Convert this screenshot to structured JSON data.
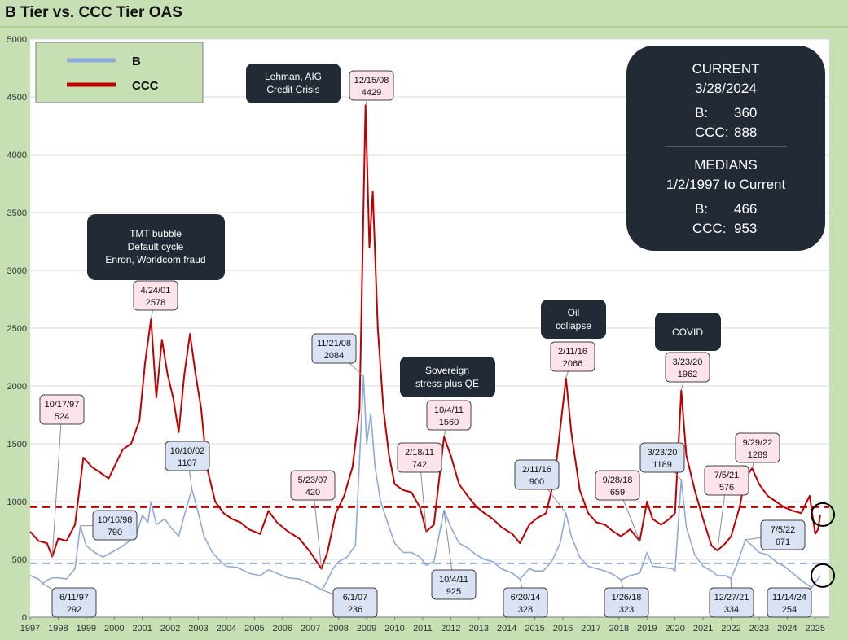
{
  "title": "B Tier vs. CCC Tier OAS",
  "chart_data": {
    "type": "line",
    "title": "B Tier vs. CCC Tier OAS",
    "xlim": [
      1997.0,
      2025.5
    ],
    "ylim": [
      0,
      5000
    ],
    "x_ticks": [
      "1997",
      "1998",
      "1999",
      "2000",
      "2001",
      "2002",
      "2003",
      "2004",
      "2005",
      "2006",
      "2007",
      "2008",
      "2009",
      "2010",
      "2011",
      "2012",
      "2013",
      "2014",
      "2015",
      "2016",
      "2017",
      "2018",
      "2019",
      "2020",
      "2021",
      "2022",
      "2023",
      "2024",
      "2025"
    ],
    "y_ticks": [
      0,
      500,
      1000,
      1500,
      2000,
      2500,
      3000,
      3500,
      4000,
      4500,
      5000
    ],
    "series": [
      {
        "name": "B",
        "color": "#8eaadb",
        "median": 466,
        "points": [
          [
            1997.0,
            360
          ],
          [
            1997.3,
            330
          ],
          [
            1997.44,
            292
          ],
          [
            1997.6,
            320
          ],
          [
            1997.8,
            340
          ],
          [
            1998.0,
            340
          ],
          [
            1998.3,
            330
          ],
          [
            1998.6,
            420
          ],
          [
            1998.79,
            790
          ],
          [
            1999.0,
            620
          ],
          [
            1999.3,
            560
          ],
          [
            1999.6,
            520
          ],
          [
            1999.9,
            560
          ],
          [
            2000.2,
            600
          ],
          [
            2000.5,
            650
          ],
          [
            2000.8,
            720
          ],
          [
            2001.0,
            880
          ],
          [
            2001.2,
            820
          ],
          [
            2001.31,
            1000
          ],
          [
            2001.5,
            800
          ],
          [
            2001.8,
            850
          ],
          [
            2002.0,
            780
          ],
          [
            2002.3,
            700
          ],
          [
            2002.5,
            880
          ],
          [
            2002.77,
            1107
          ],
          [
            2003.0,
            900
          ],
          [
            2003.2,
            700
          ],
          [
            2003.5,
            560
          ],
          [
            2003.8,
            480
          ],
          [
            2004.0,
            440
          ],
          [
            2004.4,
            430
          ],
          [
            2004.8,
            380
          ],
          [
            2005.2,
            360
          ],
          [
            2005.5,
            410
          ],
          [
            2005.8,
            380
          ],
          [
            2006.2,
            340
          ],
          [
            2006.6,
            330
          ],
          [
            2007.0,
            290
          ],
          [
            2007.41,
            236
          ],
          [
            2007.6,
            320
          ],
          [
            2007.8,
            420
          ],
          [
            2008.0,
            480
          ],
          [
            2008.3,
            520
          ],
          [
            2008.6,
            620
          ],
          [
            2008.89,
            2084
          ],
          [
            2009.0,
            1500
          ],
          [
            2009.15,
            1760
          ],
          [
            2009.3,
            1300
          ],
          [
            2009.5,
            1000
          ],
          [
            2009.8,
            780
          ],
          [
            2010.0,
            640
          ],
          [
            2010.3,
            560
          ],
          [
            2010.6,
            560
          ],
          [
            2010.9,
            520
          ],
          [
            2011.13,
            450
          ],
          [
            2011.4,
            480
          ],
          [
            2011.76,
            925
          ],
          [
            2012.0,
            780
          ],
          [
            2012.3,
            640
          ],
          [
            2012.6,
            600
          ],
          [
            2012.9,
            540
          ],
          [
            2013.2,
            500
          ],
          [
            2013.5,
            480
          ],
          [
            2013.8,
            420
          ],
          [
            2014.2,
            380
          ],
          [
            2014.47,
            328
          ],
          [
            2014.8,
            420
          ],
          [
            2015.0,
            400
          ],
          [
            2015.3,
            400
          ],
          [
            2015.6,
            480
          ],
          [
            2015.9,
            640
          ],
          [
            2016.11,
            900
          ],
          [
            2016.3,
            700
          ],
          [
            2016.6,
            520
          ],
          [
            2016.9,
            440
          ],
          [
            2017.2,
            420
          ],
          [
            2017.5,
            400
          ],
          [
            2017.8,
            370
          ],
          [
            2018.07,
            323
          ],
          [
            2018.4,
            360
          ],
          [
            2018.74,
            380
          ],
          [
            2019.0,
            560
          ],
          [
            2019.2,
            440
          ],
          [
            2019.6,
            430
          ],
          [
            2019.9,
            420
          ],
          [
            2020.0,
            400
          ],
          [
            2020.22,
            1189
          ],
          [
            2020.4,
            780
          ],
          [
            2020.7,
            540
          ],
          [
            2021.0,
            440
          ],
          [
            2021.3,
            400
          ],
          [
            2021.51,
            360
          ],
          [
            2021.8,
            360
          ],
          [
            2021.99,
            334
          ],
          [
            2022.2,
            450
          ],
          [
            2022.51,
            671
          ],
          [
            2022.75,
            620
          ],
          [
            2023.0,
            560
          ],
          [
            2023.3,
            540
          ],
          [
            2023.6,
            480
          ],
          [
            2023.9,
            440
          ],
          [
            2024.2,
            380
          ],
          [
            2024.5,
            320
          ],
          [
            2024.87,
            254
          ],
          [
            2025.0,
            300
          ],
          [
            2025.1,
            330
          ],
          [
            2025.18,
            360
          ]
        ]
      },
      {
        "name": "CCC",
        "color": "#c00000",
        "median": 953,
        "points": [
          [
            1997.0,
            740
          ],
          [
            1997.3,
            660
          ],
          [
            1997.6,
            640
          ],
          [
            1997.79,
            524
          ],
          [
            1998.0,
            680
          ],
          [
            1998.3,
            660
          ],
          [
            1998.6,
            800
          ],
          [
            1998.9,
            1380
          ],
          [
            1999.2,
            1300
          ],
          [
            1999.5,
            1250
          ],
          [
            1999.8,
            1200
          ],
          [
            2000.0,
            1300
          ],
          [
            2000.3,
            1450
          ],
          [
            2000.6,
            1500
          ],
          [
            2000.9,
            1700
          ],
          [
            2001.1,
            2200
          ],
          [
            2001.31,
            2578
          ],
          [
            2001.5,
            1900
          ],
          [
            2001.7,
            2400
          ],
          [
            2001.9,
            2100
          ],
          [
            2002.1,
            1900
          ],
          [
            2002.3,
            1600
          ],
          [
            2002.5,
            2100
          ],
          [
            2002.7,
            2450
          ],
          [
            2002.9,
            2100
          ],
          [
            2003.1,
            1800
          ],
          [
            2003.3,
            1300
          ],
          [
            2003.6,
            1000
          ],
          [
            2003.9,
            900
          ],
          [
            2004.2,
            850
          ],
          [
            2004.5,
            820
          ],
          [
            2004.8,
            760
          ],
          [
            2005.2,
            720
          ],
          [
            2005.5,
            920
          ],
          [
            2005.8,
            820
          ],
          [
            2006.2,
            740
          ],
          [
            2006.6,
            680
          ],
          [
            2007.0,
            560
          ],
          [
            2007.39,
            420
          ],
          [
            2007.6,
            560
          ],
          [
            2007.9,
            900
          ],
          [
            2008.2,
            1050
          ],
          [
            2008.5,
            1300
          ],
          [
            2008.75,
            1800
          ],
          [
            2008.96,
            4429
          ],
          [
            2009.1,
            3200
          ],
          [
            2009.22,
            3680
          ],
          [
            2009.4,
            2500
          ],
          [
            2009.6,
            1800
          ],
          [
            2009.8,
            1400
          ],
          [
            2010.0,
            1150
          ],
          [
            2010.3,
            1100
          ],
          [
            2010.6,
            1080
          ],
          [
            2010.9,
            950
          ],
          [
            2011.13,
            742
          ],
          [
            2011.4,
            800
          ],
          [
            2011.76,
            1560
          ],
          [
            2012.0,
            1400
          ],
          [
            2012.3,
            1150
          ],
          [
            2012.6,
            1050
          ],
          [
            2012.9,
            960
          ],
          [
            2013.2,
            900
          ],
          [
            2013.5,
            850
          ],
          [
            2013.8,
            780
          ],
          [
            2014.2,
            720
          ],
          [
            2014.47,
            640
          ],
          [
            2014.8,
            800
          ],
          [
            2015.1,
            860
          ],
          [
            2015.4,
            900
          ],
          [
            2015.7,
            1200
          ],
          [
            2016.11,
            2066
          ],
          [
            2016.3,
            1600
          ],
          [
            2016.6,
            1100
          ],
          [
            2016.9,
            900
          ],
          [
            2017.2,
            820
          ],
          [
            2017.5,
            800
          ],
          [
            2017.8,
            740
          ],
          [
            2018.07,
            700
          ],
          [
            2018.4,
            760
          ],
          [
            2018.74,
            659
          ],
          [
            2019.0,
            1000
          ],
          [
            2019.2,
            850
          ],
          [
            2019.5,
            800
          ],
          [
            2019.8,
            850
          ],
          [
            2020.0,
            900
          ],
          [
            2020.22,
            1962
          ],
          [
            2020.4,
            1400
          ],
          [
            2020.7,
            1100
          ],
          [
            2021.0,
            850
          ],
          [
            2021.3,
            620
          ],
          [
            2021.51,
            576
          ],
          [
            2021.8,
            640
          ],
          [
            2022.0,
            700
          ],
          [
            2022.3,
            950
          ],
          [
            2022.5,
            1200
          ],
          [
            2022.75,
            1289
          ],
          [
            2023.0,
            1150
          ],
          [
            2023.3,
            1050
          ],
          [
            2023.6,
            1000
          ],
          [
            2023.9,
            950
          ],
          [
            2024.2,
            920
          ],
          [
            2024.5,
            900
          ],
          [
            2024.8,
            1050
          ],
          [
            2025.0,
            720
          ],
          [
            2025.1,
            760
          ],
          [
            2025.18,
            888
          ]
        ]
      }
    ]
  },
  "legend": [
    {
      "name": "B",
      "color": "#8eaadb"
    },
    {
      "name": "CCC",
      "color": "#c00000"
    }
  ],
  "info_box": {
    "current_heading": "CURRENT",
    "current_date": "3/28/2024",
    "b_label": "B:",
    "b_current": "360",
    "ccc_label": "CCC:",
    "ccc_current": "888",
    "medians_heading": "MEDIANS",
    "medians_range": "1/2/1997 to Current",
    "b_median": "466",
    "ccc_median": "953"
  },
  "annotations": [
    {
      "lines": [
        "TMT bubble",
        "Default cycle",
        "Enron, Worldcom fraud"
      ]
    },
    {
      "lines": [
        "Lehman, AIG",
        "Credit Crisis"
      ]
    },
    {
      "lines": [
        "Sovereign",
        "stress plus QE"
      ]
    },
    {
      "lines": [
        "Oil",
        "collapse"
      ]
    },
    {
      "lines": [
        "COVID"
      ]
    }
  ],
  "ccc_labels": [
    {
      "date": "10/17/97",
      "value": "524",
      "x": 1997.79,
      "y": 524
    },
    {
      "date": "4/24/01",
      "value": "2578",
      "x": 2001.31,
      "y": 2578
    },
    {
      "date": "12/15/08",
      "value": "4429",
      "x": 2008.96,
      "y": 4429
    },
    {
      "date": "5/23/07",
      "value": "420",
      "x": 2007.39,
      "y": 420
    },
    {
      "date": "10/4/11",
      "value": "1560",
      "x": 2011.76,
      "y": 1560
    },
    {
      "date": "2/18/11",
      "value": "742",
      "x": 2011.13,
      "y": 742
    },
    {
      "date": "2/11/16",
      "value": "2066",
      "x": 2016.11,
      "y": 2066
    },
    {
      "date": "9/28/18",
      "value": "659",
      "x": 2018.74,
      "y": 659
    },
    {
      "date": "3/23/20",
      "value": "1962",
      "x": 2020.22,
      "y": 1962
    },
    {
      "date": "7/5/21",
      "value": "576",
      "x": 2021.51,
      "y": 576
    },
    {
      "date": "9/29/22",
      "value": "1289",
      "x": 2022.75,
      "y": 1289
    }
  ],
  "b_labels": [
    {
      "date": "6/11/97",
      "value": "292",
      "x": 1997.44,
      "y": 292
    },
    {
      "date": "10/16/98",
      "value": "790",
      "x": 1998.79,
      "y": 790
    },
    {
      "date": "10/10/02",
      "value": "1107",
      "x": 2002.77,
      "y": 1107
    },
    {
      "date": "6/1/07",
      "value": "236",
      "x": 2007.41,
      "y": 236
    },
    {
      "date": "11/21/08",
      "value": "2084",
      "x": 2008.89,
      "y": 2084
    },
    {
      "date": "10/4/11",
      "value": "925",
      "x": 2011.76,
      "y": 925
    },
    {
      "date": "6/20/14",
      "value": "328",
      "x": 2014.47,
      "y": 328
    },
    {
      "date": "2/11/16",
      "value": "900",
      "x": 2016.11,
      "y": 900
    },
    {
      "date": "1/26/18",
      "value": "323",
      "x": 2018.07,
      "y": 323
    },
    {
      "date": "3/23/20",
      "value": "1189",
      "x": 2020.22,
      "y": 1189
    },
    {
      "date": "12/27/21",
      "value": "334",
      "x": 2021.99,
      "y": 334
    },
    {
      "date": "7/5/22",
      "value": "671",
      "x": 2022.51,
      "y": 671
    },
    {
      "date": "11/14/24",
      "value": "254",
      "x": 2024.87,
      "y": 254
    }
  ]
}
